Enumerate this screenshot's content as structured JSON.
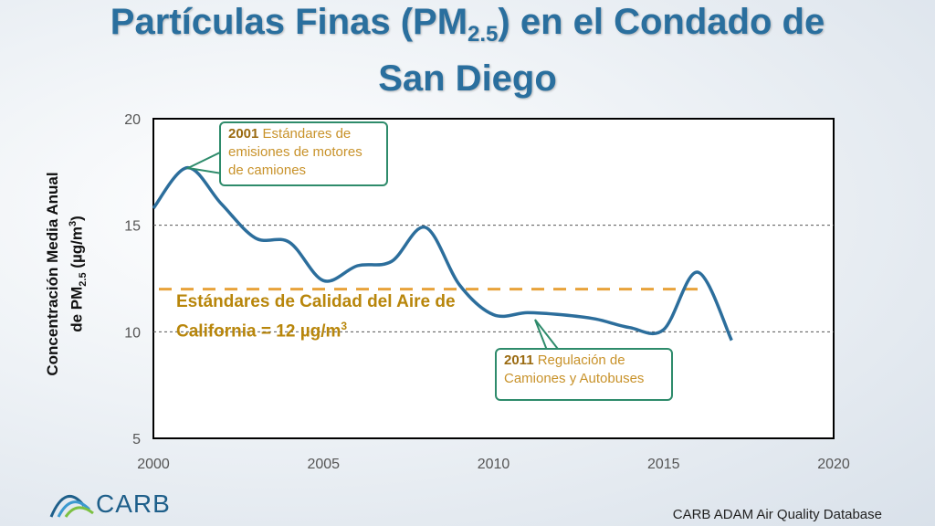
{
  "title": {
    "main_before": "Partículas Finas (PM",
    "main_sub": "2.5",
    "main_after": ") en el Condado de",
    "line2": "San Diego"
  },
  "ylabel": {
    "line1": "Concentración Media Anual",
    "line2_prefix": "de  PM",
    "line2_sub": "2.5",
    "line2_unit": " (µg/m",
    "line2_sup": "3",
    "line2_end": ")"
  },
  "annotations": {
    "a2001_year": "2001",
    "a2001_text": " Estándares de emisiones de motores de camiones",
    "a2011_year": "2011",
    "a2011_text": " Regulación de Camiones y Autobuses"
  },
  "standard": {
    "line1": "Estándares de Calidad del Aire de",
    "line2_prefix": "California = 12 µg/m",
    "line2_sup": "3"
  },
  "footer": "CARB ADAM Air Quality Database",
  "logo_text": "CARB",
  "colors": {
    "title": "#2a6f9e",
    "series": "#2c6e9c",
    "standard_line": "#e8a23a",
    "callout_border": "#2e8b6b"
  },
  "chart_data": {
    "type": "line",
    "xlim": [
      2000,
      2020
    ],
    "ylim": [
      5,
      20
    ],
    "xticks": [
      2000,
      2005,
      2010,
      2015,
      2020
    ],
    "yticks": [
      5,
      10,
      15,
      20
    ],
    "grid": "horizontal dashed",
    "series": [
      {
        "x": [
          2000,
          2001,
          2002,
          2003,
          2004,
          2005,
          2006,
          2007,
          2008,
          2009,
          2010,
          2011,
          2012,
          2013,
          2014,
          2015,
          2016,
          2017
        ],
        "values": [
          15.8,
          17.7,
          16.0,
          14.4,
          14.2,
          12.4,
          13.1,
          13.3,
          14.9,
          12.2,
          10.8,
          10.9,
          10.8,
          10.6,
          10.2,
          10.1,
          12.8,
          9.6
        ]
      }
    ],
    "reference_line": {
      "value": 12
    }
  }
}
